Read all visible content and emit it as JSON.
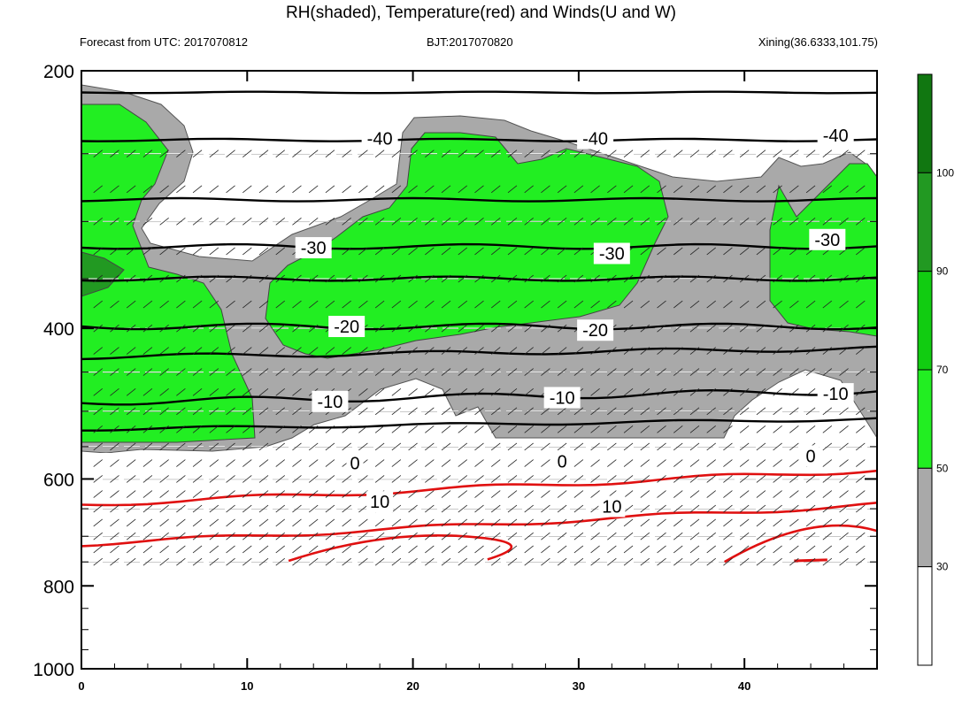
{
  "header": {
    "title": "RH(shaded), Temperature(red) and Winds(U and W)",
    "left": "Forecast from UTC: 2017070812",
    "center": "BJT:2017070820",
    "right": "Xining(36.6333,101.75)"
  },
  "chart_data": {
    "type": "contour",
    "x_ticks": [
      0,
      10,
      20,
      30,
      40
    ],
    "xlim": [
      0,
      48
    ],
    "y_ticks": [
      200,
      400,
      600,
      800,
      1000
    ],
    "ylim": [
      200,
      1000
    ],
    "y_axis_inverted": true,
    "y_scale": "log-pressure",
    "colorbar": {
      "levels": [
        30,
        50,
        70,
        90,
        100
      ],
      "colors": [
        "#ffffff",
        "#a9a9a9",
        "#22ee22",
        "#11cc11",
        "#229922",
        "#117711"
      ]
    },
    "contour_labels": [
      {
        "x": 18,
        "p": 240,
        "text": "-40"
      },
      {
        "x": 31,
        "p": 240,
        "text": "-40"
      },
      {
        "x": 45.5,
        "p": 238,
        "text": "-40"
      },
      {
        "x": 14,
        "p": 322,
        "text": "-30"
      },
      {
        "x": 32,
        "p": 327,
        "text": "-30"
      },
      {
        "x": 45,
        "p": 315,
        "text": "-30"
      },
      {
        "x": 16,
        "p": 398,
        "text": "-20"
      },
      {
        "x": 31,
        "p": 402,
        "text": "-20"
      },
      {
        "x": 15,
        "p": 487,
        "text": "-10"
      },
      {
        "x": 29,
        "p": 482,
        "text": "-10"
      },
      {
        "x": 45.5,
        "p": 477,
        "text": "-10"
      },
      {
        "x": 16.5,
        "p": 575,
        "text": "0"
      },
      {
        "x": 29,
        "p": 572,
        "text": "0"
      },
      {
        "x": 44,
        "p": 564,
        "text": "0"
      },
      {
        "x": 18,
        "p": 638,
        "text": "10"
      },
      {
        "x": 32,
        "p": 646,
        "text": "10"
      }
    ]
  }
}
